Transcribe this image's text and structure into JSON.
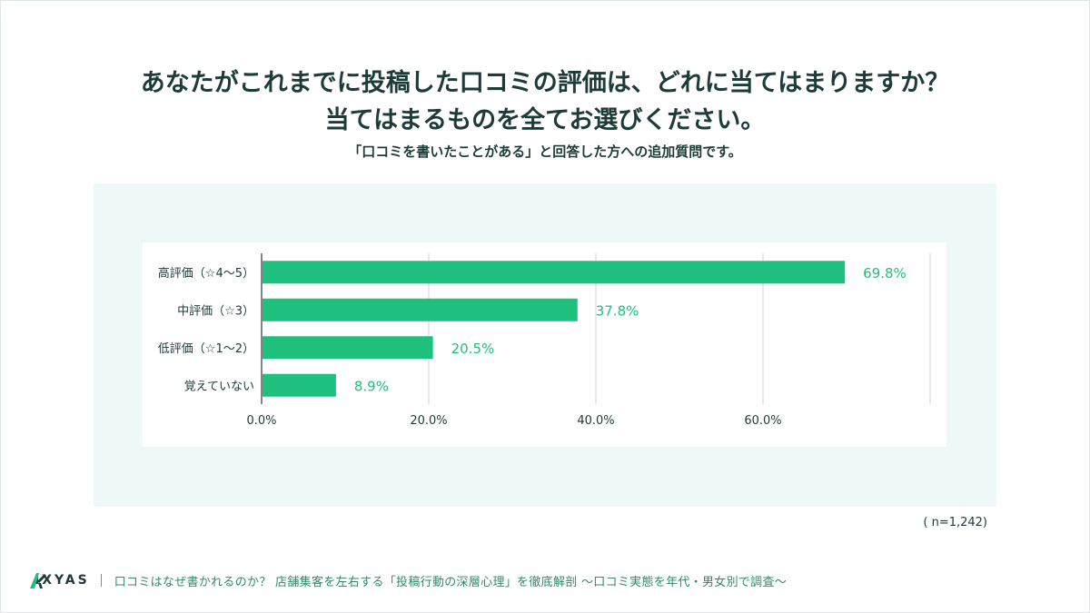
{
  "header": {
    "title_line1": "あなたがこれまでに投稿した口コミの評価は、どれに当てはまりますか？",
    "title_line2": "当てはまるものを全てお選びください。",
    "subtitle": "「口コミを書いたことがある」と回答した方への追加質問です。"
  },
  "sample_note": "( n=1,242)",
  "footer": {
    "brand": "IXYAS",
    "caption": "口コミはなぜ書かれるのか？ 店舗集客を左右する「投稿行動の深層心理」を徹底解剖 〜口コミ実態を年代・男女別で調査〜"
  },
  "colors": {
    "bar": "#1fbf7d",
    "value_text": "#1fbf7d",
    "panel_bg": "#eef8f8",
    "brand_green": "#2f8a6e"
  },
  "chart_data": {
    "type": "bar",
    "orientation": "horizontal",
    "categories": [
      "高評価（☆4〜5）",
      "中評価（☆3）",
      "低評価（☆1〜2）",
      "覚えていない"
    ],
    "values": [
      69.8,
      37.8,
      20.5,
      8.9
    ],
    "value_labels": [
      "69.8%",
      "37.8%",
      "20.5%",
      "8.9%"
    ],
    "xlim": [
      0,
      80
    ],
    "x_ticks": [
      0,
      20,
      40,
      60,
      80
    ],
    "x_tick_labels": [
      "0.0%",
      "20.0%",
      "40.0%",
      "60.0%",
      ""
    ],
    "grid": true
  }
}
